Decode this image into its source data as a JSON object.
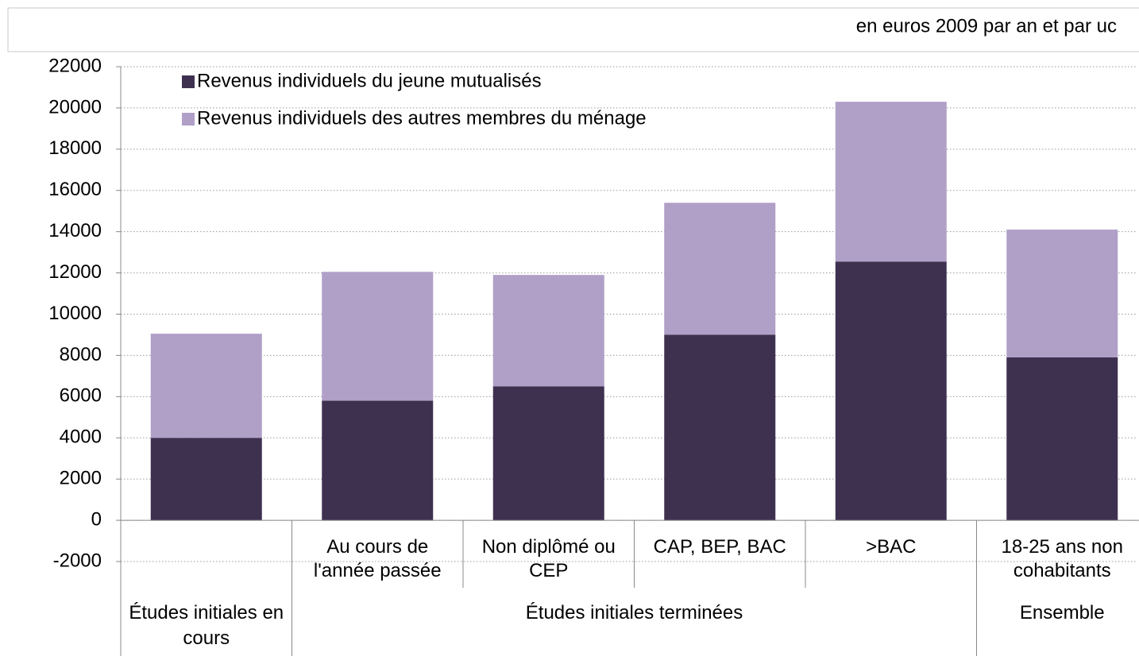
{
  "chart_data": {
    "type": "stacked_bar",
    "subtitle": "en euros 2009 par an et par uc",
    "groups": [
      {
        "name": "Études initiales en cours",
        "categories": [
          null
        ]
      },
      {
        "name": "Études initiales terminées",
        "categories": [
          "Au cours de l'année passée",
          "Non diplômé ou CEP",
          "CAP, BEP, BAC",
          ">BAC"
        ]
      },
      {
        "name": "Ensemble",
        "categories": [
          "18-25 ans non cohabitants"
        ]
      }
    ],
    "series": [
      {
        "name": "Revenus individuels du jeune mutualisés",
        "color": "#3e3150",
        "values": [
          4000,
          5800,
          6500,
          9000,
          12550,
          7900
        ]
      },
      {
        "name": "Revenus individuels des autres membres du ménage",
        "color": "#b09fc7",
        "values": [
          5050,
          6250,
          5400,
          6400,
          7750,
          6200
        ]
      }
    ],
    "ylim": [
      -2000,
      22000
    ],
    "yticks": [
      -2000,
      0,
      2000,
      4000,
      6000,
      8000,
      10000,
      12000,
      14000,
      16000,
      18000,
      20000,
      22000
    ],
    "grid": true,
    "legend": "top-left"
  }
}
